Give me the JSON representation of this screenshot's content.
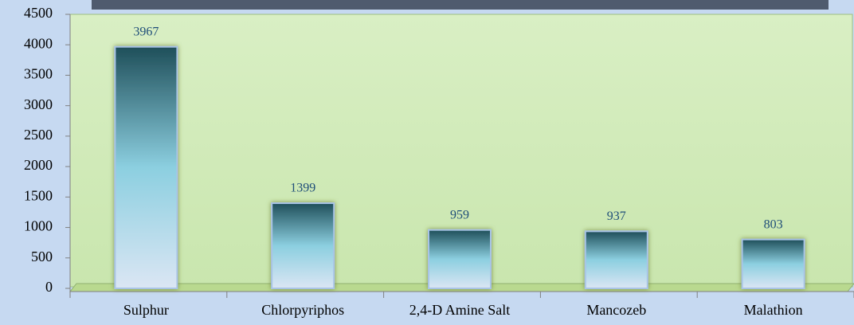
{
  "chart_data": {
    "type": "bar",
    "categories": [
      "Sulphur",
      "Chlorpyriphos",
      "2,4-D Amine Salt",
      "Mancozeb",
      "Malathion"
    ],
    "values": [
      3967,
      1399,
      959,
      937,
      803
    ],
    "color": "#2e6b78",
    "ylim": [
      0,
      4500
    ],
    "yticks": [
      0,
      500,
      1000,
      1500,
      2000,
      2500,
      3000,
      3500,
      4000,
      4500
    ],
    "grid": false
  }
}
